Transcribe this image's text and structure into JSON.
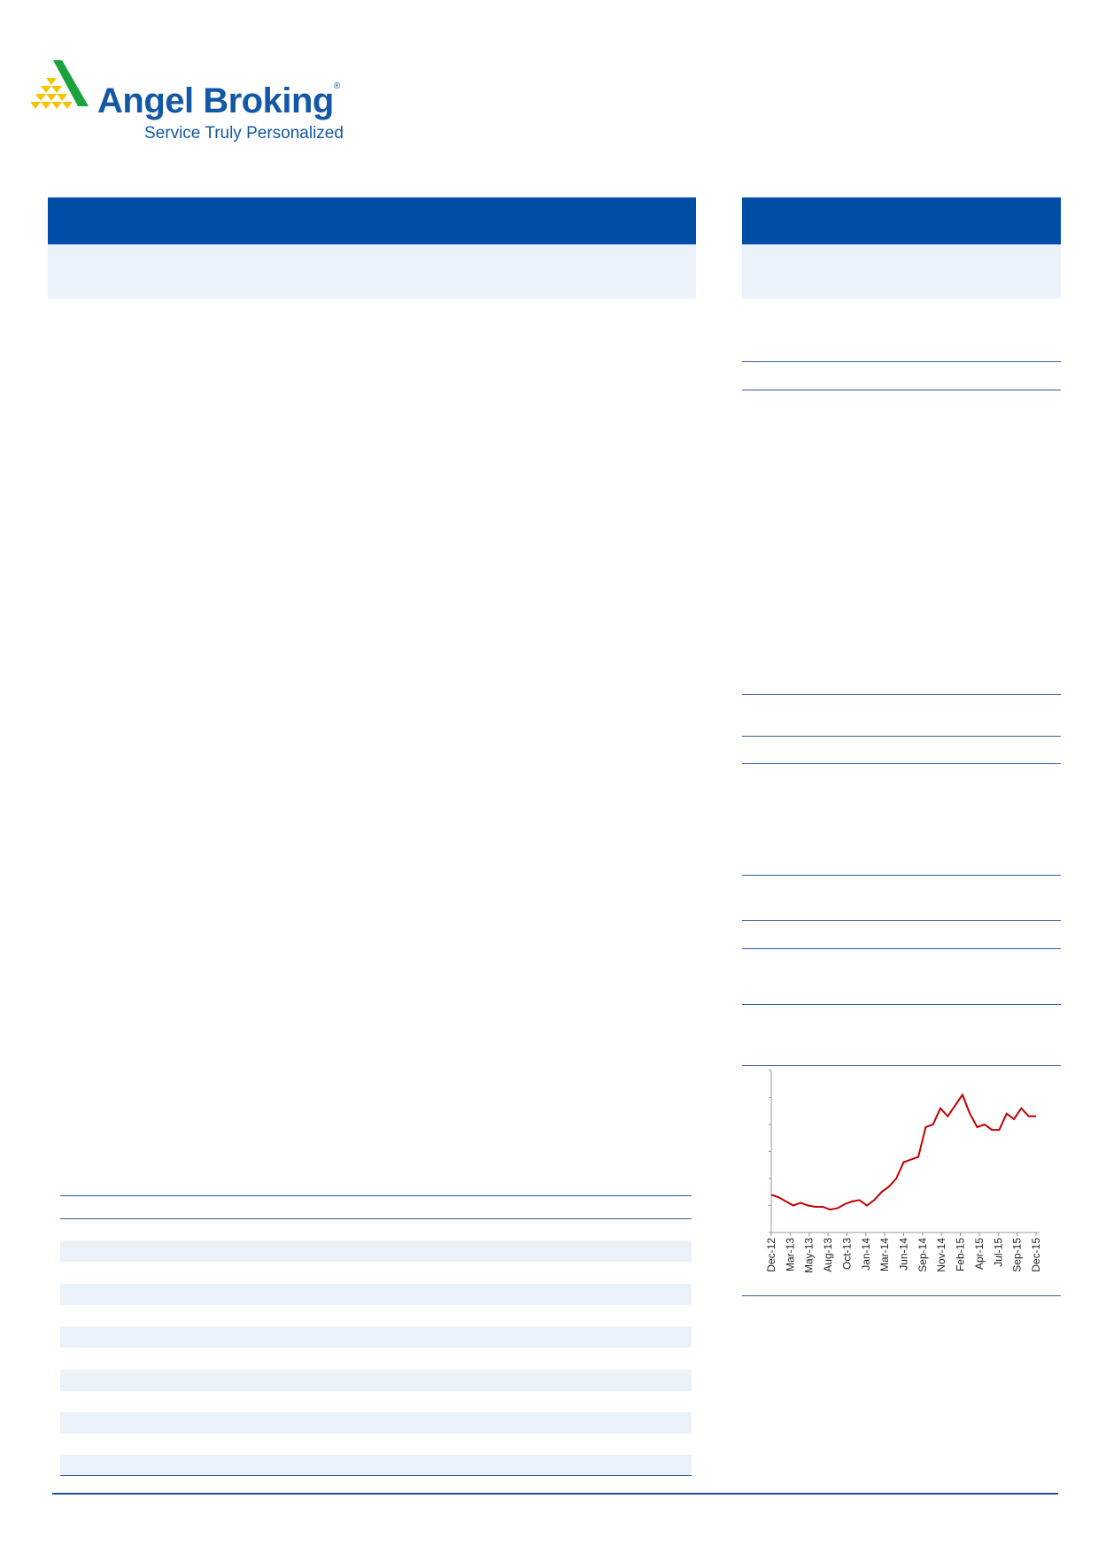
{
  "logo": {
    "name": "Angel Broking",
    "registered": "®",
    "tagline": "Service Truly Personalized",
    "colors": {
      "brand_blue": "#1458a5",
      "green": "#1aa33c",
      "yellow": "#f5c400"
    }
  },
  "colors": {
    "header_bar": "#004da8",
    "band": "#eaf1f8",
    "rule": "#2f5f9f",
    "chart_line": "#c00000"
  },
  "chart_data": {
    "type": "line",
    "title": "",
    "xlabel": "",
    "ylabel": "",
    "x_tick_labels": [
      "Dec-12",
      "Mar-13",
      "May-13",
      "Aug-13",
      "Oct-13",
      "Jan-14",
      "Mar-14",
      "Jun-14",
      "Sep-14",
      "Nov-14",
      "Feb-15",
      "Apr-15",
      "Jul-15",
      "Sep-15",
      "Dec-15"
    ],
    "y_tick_count": 7,
    "ylim": [
      0,
      6
    ],
    "y_tick_labels_shown": false,
    "grid": false,
    "x": [
      "Dec-12",
      "Jan-13",
      "Feb-13",
      "Mar-13",
      "Apr-13",
      "May-13",
      "Jun-13",
      "Jul-13",
      "Aug-13",
      "Sep-13",
      "Oct-13",
      "Nov-13",
      "Dec-13",
      "Jan-14",
      "Feb-14",
      "Mar-14",
      "Apr-14",
      "May-14",
      "Jun-14",
      "Jul-14",
      "Aug-14",
      "Sep-14",
      "Oct-14",
      "Nov-14",
      "Dec-14",
      "Jan-15",
      "Feb-15",
      "Mar-15",
      "Apr-15",
      "May-15",
      "Jun-15",
      "Jul-15",
      "Aug-15",
      "Sep-15",
      "Oct-15",
      "Nov-15",
      "Dec-15"
    ],
    "values": [
      1.4,
      1.3,
      1.15,
      1.0,
      1.1,
      1.0,
      0.95,
      0.95,
      0.85,
      0.9,
      1.05,
      1.15,
      1.2,
      1.0,
      1.2,
      1.5,
      1.7,
      2.0,
      2.6,
      2.7,
      2.8,
      3.9,
      4.0,
      4.6,
      4.3,
      4.7,
      5.1,
      4.4,
      3.9,
      4.0,
      3.8,
      3.8,
      4.4,
      4.2,
      4.6,
      4.3,
      4.3
    ],
    "series_color": "#c00000"
  }
}
